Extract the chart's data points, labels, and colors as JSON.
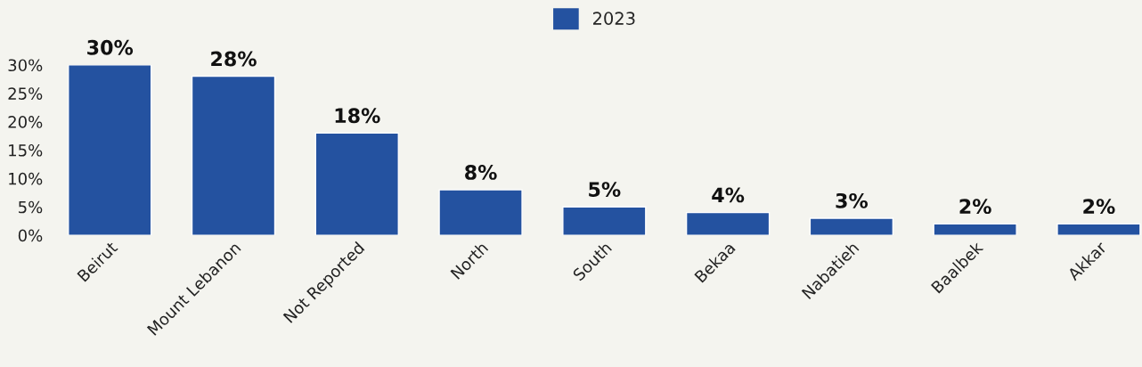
{
  "chart_data": {
    "type": "bar",
    "categories": [
      "Beirut",
      "Mount Lebanon",
      "Not Reported",
      "North",
      "South",
      "Bekaa",
      "Nabatieh",
      "Baalbek",
      "Akkar"
    ],
    "series": [
      {
        "name": "2023",
        "color": "#2452a0",
        "values": [
          30,
          28,
          18,
          8,
          5,
          4,
          3,
          2,
          2
        ],
        "value_labels": [
          "30%",
          "28%",
          "18%",
          "8%",
          "5%",
          "4%",
          "3%",
          "2%",
          "2%"
        ]
      }
    ],
    "ylim": [
      0,
      30
    ],
    "yticks": [
      {
        "value": 0,
        "label": "0%"
      },
      {
        "value": 5,
        "label": "5%"
      },
      {
        "value": 10,
        "label": "10%"
      },
      {
        "value": 15,
        "label": "15%"
      },
      {
        "value": 20,
        "label": "20%"
      },
      {
        "value": 25,
        "label": "25%"
      },
      {
        "value": 30,
        "label": "30%"
      }
    ],
    "grid": false,
    "legend": "top"
  }
}
